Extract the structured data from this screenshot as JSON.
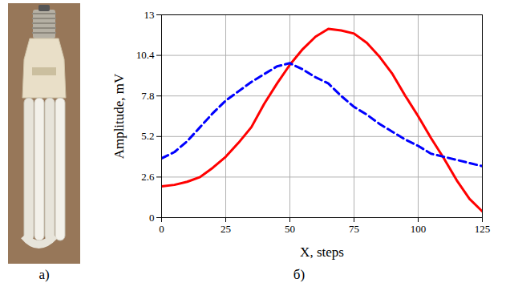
{
  "photo": {
    "label": "а)"
  },
  "chart_data": {
    "type": "line",
    "panel_label": "б)",
    "x_label": "X, steps",
    "y_label": "Amplitude, mV",
    "x": [
      0,
      5,
      10,
      15,
      20,
      25,
      30,
      35,
      40,
      45,
      50,
      55,
      60,
      65,
      70,
      75,
      80,
      85,
      90,
      95,
      100,
      105,
      110,
      115,
      120,
      125
    ],
    "series": [
      {
        "color": "#ff0000",
        "line_style": "solid",
        "values": [
          2.0,
          2.1,
          2.3,
          2.6,
          3.2,
          3.9,
          4.8,
          5.8,
          7.3,
          8.6,
          9.8,
          10.8,
          11.6,
          12.1,
          12.0,
          11.8,
          11.2,
          10.3,
          9.2,
          7.8,
          6.5,
          5.1,
          3.8,
          2.4,
          1.2,
          0.4
        ]
      },
      {
        "color": "#0000ff",
        "line_style": "dashed",
        "values": [
          3.8,
          4.2,
          4.9,
          5.8,
          6.7,
          7.5,
          8.1,
          8.7,
          9.2,
          9.7,
          9.9,
          9.5,
          9.0,
          8.6,
          7.8,
          7.1,
          6.6,
          6.0,
          5.5,
          5.0,
          4.6,
          4.1,
          3.9,
          3.7,
          3.5,
          3.3
        ]
      }
    ],
    "xlim": [
      0,
      125
    ],
    "xticks": [
      0,
      25,
      50,
      75,
      100,
      125
    ],
    "ylim": [
      0,
      13
    ],
    "yticks": [
      0,
      2.6,
      5.2,
      7.8,
      10.4,
      13
    ],
    "grid": true
  }
}
